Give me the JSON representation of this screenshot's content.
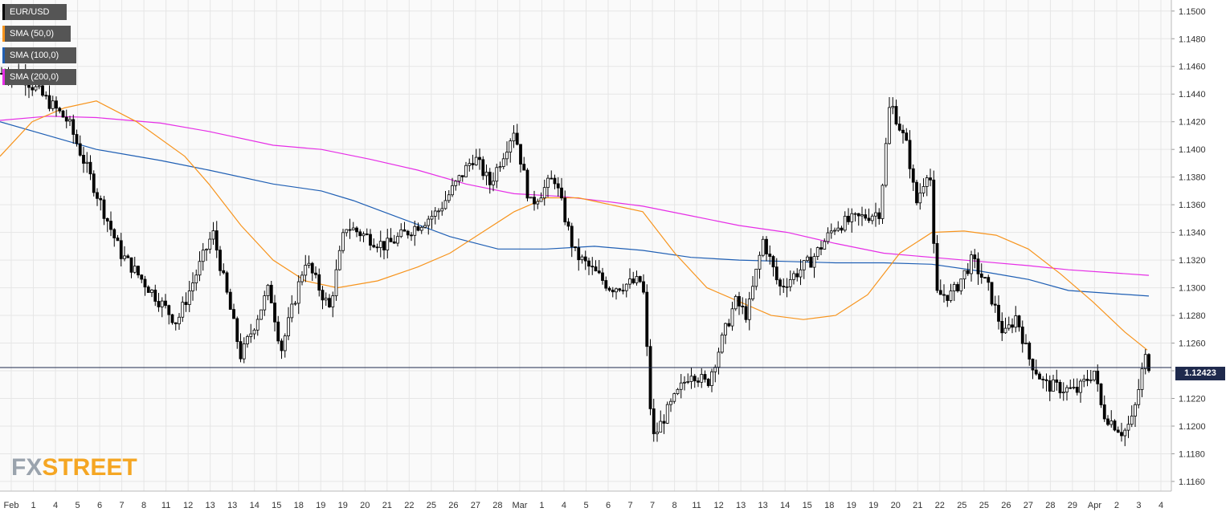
{
  "chart_data": {
    "type": "candlestick",
    "symbol": "EUR/USD",
    "timeframe": "4h",
    "legend": [
      {
        "label": "EUR/USD",
        "color": "#000000"
      },
      {
        "label": "SMA (50,0)",
        "color": "#f7941d"
      },
      {
        "label": "SMA (100,0)",
        "color": "#1f5fb4"
      },
      {
        "label": "SMA (200,0)",
        "color": "#e62ee6"
      }
    ],
    "y_ticks": [
      "1.1500",
      "1.1480",
      "1.1460",
      "1.1440",
      "1.1420",
      "1.1400",
      "1.1380",
      "1.1360",
      "1.1340",
      "1.1320",
      "1.1300",
      "1.1280",
      "1.1260",
      "1.1240",
      "1.1220",
      "1.1200",
      "1.1180",
      "1.1160"
    ],
    "ylim": [
      1.1153,
      1.1508
    ],
    "x_ticks": [
      "Feb",
      "1",
      "4",
      "5",
      "6",
      "7",
      "8",
      "11",
      "12",
      "13",
      "13",
      "14",
      "15",
      "18",
      "19",
      "19",
      "20",
      "21",
      "22",
      "25",
      "26",
      "27",
      "28",
      "Mar",
      "1",
      "4",
      "5",
      "6",
      "7",
      "7",
      "8",
      "11",
      "12",
      "13",
      "13",
      "14",
      "15",
      "18",
      "19",
      "19",
      "20",
      "21",
      "22",
      "25",
      "25",
      "26",
      "27",
      "28",
      "29",
      "Apr",
      "2",
      "3",
      "4"
    ],
    "last_price": 1.12423,
    "last_price_label": "1.12423",
    "key_points": [
      {
        "t": 0,
        "price": 1.1455
      },
      {
        "t": 25,
        "price": 1.1455
      },
      {
        "t": 85,
        "price": 1.142
      },
      {
        "t": 150,
        "price": 1.1325
      },
      {
        "t": 220,
        "price": 1.1275
      },
      {
        "t": 265,
        "price": 1.134
      },
      {
        "t": 300,
        "price": 1.125
      },
      {
        "t": 335,
        "price": 1.13
      },
      {
        "t": 350,
        "price": 1.1255
      },
      {
        "t": 380,
        "price": 1.132
      },
      {
        "t": 410,
        "price": 1.1285
      },
      {
        "t": 430,
        "price": 1.1345
      },
      {
        "t": 480,
        "price": 1.133
      },
      {
        "t": 545,
        "price": 1.1355
      },
      {
        "t": 590,
        "price": 1.1395
      },
      {
        "t": 610,
        "price": 1.1375
      },
      {
        "t": 640,
        "price": 1.1415
      },
      {
        "t": 660,
        "price": 1.136
      },
      {
        "t": 690,
        "price": 1.138
      },
      {
        "t": 715,
        "price": 1.1325
      },
      {
        "t": 760,
        "price": 1.13
      },
      {
        "t": 800,
        "price": 1.1305
      },
      {
        "t": 812,
        "price": 1.119
      },
      {
        "t": 830,
        "price": 1.121
      },
      {
        "t": 860,
        "price": 1.124
      },
      {
        "t": 880,
        "price": 1.123
      },
      {
        "t": 915,
        "price": 1.129
      },
      {
        "t": 930,
        "price": 1.128
      },
      {
        "t": 950,
        "price": 1.1335
      },
      {
        "t": 970,
        "price": 1.13
      },
      {
        "t": 1010,
        "price": 1.132
      },
      {
        "t": 1040,
        "price": 1.1345
      },
      {
        "t": 1095,
        "price": 1.1355
      },
      {
        "t": 1108,
        "price": 1.1435
      },
      {
        "t": 1130,
        "price": 1.14
      },
      {
        "t": 1140,
        "price": 1.136
      },
      {
        "t": 1157,
        "price": 1.139
      },
      {
        "t": 1165,
        "price": 1.1295
      },
      {
        "t": 1185,
        "price": 1.1295
      },
      {
        "t": 1210,
        "price": 1.132
      },
      {
        "t": 1230,
        "price": 1.13
      },
      {
        "t": 1250,
        "price": 1.1265
      },
      {
        "t": 1265,
        "price": 1.128
      },
      {
        "t": 1280,
        "price": 1.125
      },
      {
        "t": 1300,
        "price": 1.123
      },
      {
        "t": 1340,
        "price": 1.1225
      },
      {
        "t": 1362,
        "price": 1.124
      },
      {
        "t": 1372,
        "price": 1.121
      },
      {
        "t": 1398,
        "price": 1.1195
      },
      {
        "t": 1410,
        "price": 1.1205
      },
      {
        "t": 1425,
        "price": 1.125
      },
      {
        "t": 1432,
        "price": 1.1242
      }
    ],
    "sma50": [
      [
        0,
        1.1395
      ],
      [
        40,
        1.142
      ],
      [
        80,
        1.143
      ],
      [
        120,
        1.1435
      ],
      [
        170,
        1.142
      ],
      [
        230,
        1.1395
      ],
      [
        260,
        1.1375
      ],
      [
        300,
        1.1345
      ],
      [
        340,
        1.132
      ],
      [
        380,
        1.1305
      ],
      [
        420,
        1.13
      ],
      [
        470,
        1.1305
      ],
      [
        520,
        1.1315
      ],
      [
        560,
        1.1325
      ],
      [
        600,
        1.134
      ],
      [
        640,
        1.1355
      ],
      [
        680,
        1.1365
      ],
      [
        720,
        1.1365
      ],
      [
        760,
        1.136
      ],
      [
        800,
        1.1355
      ],
      [
        840,
        1.1325
      ],
      [
        880,
        1.13
      ],
      [
        920,
        1.129
      ],
      [
        960,
        1.128
      ],
      [
        1000,
        1.1277
      ],
      [
        1040,
        1.128
      ],
      [
        1080,
        1.1295
      ],
      [
        1120,
        1.1325
      ],
      [
        1160,
        1.134
      ],
      [
        1200,
        1.1341
      ],
      [
        1240,
        1.1338
      ],
      [
        1280,
        1.1328
      ],
      [
        1320,
        1.131
      ],
      [
        1360,
        1.129
      ],
      [
        1400,
        1.1268
      ],
      [
        1428,
        1.1255
      ]
    ],
    "sma100": [
      [
        0,
        1.142
      ],
      [
        60,
        1.141
      ],
      [
        120,
        1.14
      ],
      [
        200,
        1.1392
      ],
      [
        260,
        1.1385
      ],
      [
        340,
        1.1375
      ],
      [
        400,
        1.137
      ],
      [
        440,
        1.1363
      ],
      [
        500,
        1.135
      ],
      [
        560,
        1.1337
      ],
      [
        620,
        1.1328
      ],
      [
        680,
        1.1328
      ],
      [
        740,
        1.133
      ],
      [
        800,
        1.1327
      ],
      [
        860,
        1.1322
      ],
      [
        920,
        1.132
      ],
      [
        980,
        1.1319
      ],
      [
        1040,
        1.1318
      ],
      [
        1100,
        1.1318
      ],
      [
        1160,
        1.1317
      ],
      [
        1220,
        1.1312
      ],
      [
        1280,
        1.1306
      ],
      [
        1330,
        1.1298
      ],
      [
        1380,
        1.1296
      ],
      [
        1430,
        1.1294
      ]
    ],
    "sma200": [
      [
        0,
        1.1421
      ],
      [
        60,
        1.1424
      ],
      [
        120,
        1.1423
      ],
      [
        200,
        1.1419
      ],
      [
        260,
        1.1413
      ],
      [
        340,
        1.1403
      ],
      [
        400,
        1.14
      ],
      [
        460,
        1.1393
      ],
      [
        520,
        1.1385
      ],
      [
        580,
        1.1375
      ],
      [
        640,
        1.1368
      ],
      [
        700,
        1.1366
      ],
      [
        760,
        1.1362
      ],
      [
        800,
        1.1359
      ],
      [
        860,
        1.1352
      ],
      [
        920,
        1.1345
      ],
      [
        980,
        1.134
      ],
      [
        1040,
        1.1332
      ],
      [
        1100,
        1.1325
      ],
      [
        1160,
        1.1322
      ],
      [
        1220,
        1.1319
      ],
      [
        1280,
        1.1316
      ],
      [
        1330,
        1.1313
      ],
      [
        1380,
        1.1311
      ],
      [
        1430,
        1.1309
      ]
    ]
  },
  "watermark": {
    "part1": "FX",
    "part2": "STREET"
  }
}
